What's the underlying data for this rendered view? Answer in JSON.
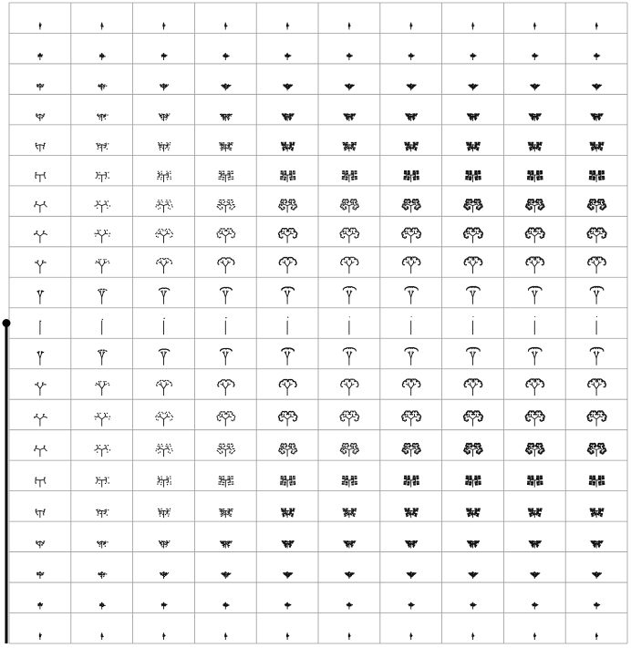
{
  "grid": {
    "rows": 21,
    "cols": 10
  },
  "colors": {
    "background": "#ffffff",
    "ink": "#111111",
    "gridline": "#9a9a9a",
    "rail": "#000000"
  },
  "slider": {
    "marker_row": 10,
    "marker_rel": 0.5
  }
}
